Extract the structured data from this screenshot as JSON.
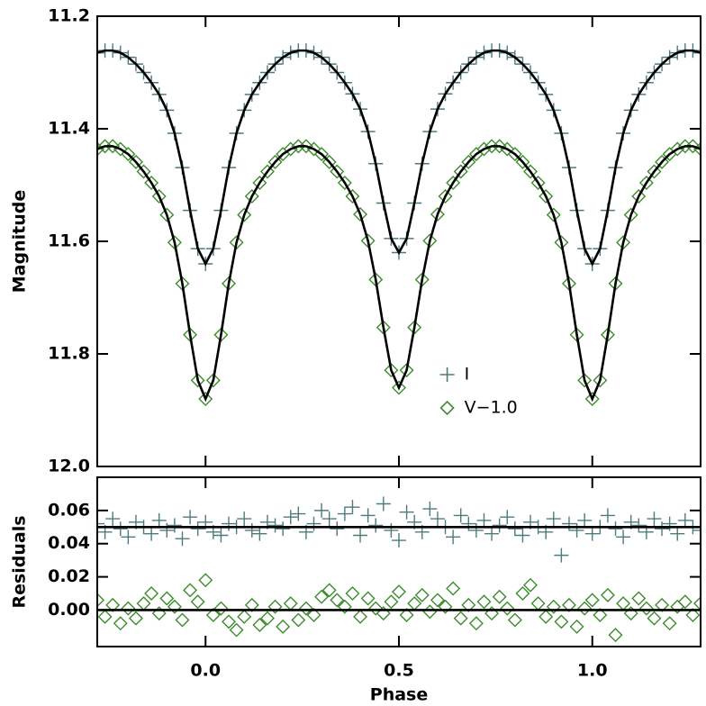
{
  "chart_data": [
    {
      "type": "scatter",
      "ylabel": "Magnitude",
      "xlim": [
        -0.28,
        1.28
      ],
      "ylim": [
        11.2,
        12.0
      ],
      "y_inverted": true,
      "xticks": [
        0,
        0.5,
        1
      ],
      "yticks": [
        11.2,
        11.4,
        11.6,
        11.8,
        {
          "value": 12.0,
          "label": "12.0"
        }
      ],
      "legend": "lower center",
      "x": [
        -0.28,
        -0.26,
        -0.24,
        -0.22,
        -0.2,
        -0.18,
        -0.16,
        -0.14,
        -0.12,
        -0.1,
        -0.08,
        -0.06,
        -0.04,
        -0.02,
        0,
        0.02,
        0.04,
        0.06,
        0.08,
        0.1,
        0.12,
        0.14,
        0.16,
        0.18,
        0.2,
        0.22,
        0.24,
        0.26,
        0.28,
        0.3,
        0.32,
        0.34,
        0.36,
        0.38,
        0.4,
        0.42,
        0.44,
        0.46,
        0.48,
        0.5,
        0.52,
        0.54,
        0.56,
        0.58,
        0.6,
        0.62,
        0.64,
        0.66,
        0.68,
        0.7,
        0.72,
        0.74,
        0.76,
        0.78,
        0.8,
        0.82,
        0.84,
        0.86,
        0.88,
        0.9,
        0.92,
        0.94,
        0.96,
        0.98,
        1,
        1.02,
        1.04,
        1.06,
        1.08,
        1.1,
        1.12,
        1.14,
        1.16,
        1.18,
        1.2,
        1.22,
        1.24,
        1.26,
        1.28
      ],
      "series": [
        {
          "name": "I",
          "color": "#4d7b7b",
          "marker": "plus",
          "values": [
            11.265,
            11.261,
            11.261,
            11.265,
            11.273,
            11.285,
            11.3,
            11.318,
            11.339,
            11.367,
            11.408,
            11.469,
            11.545,
            11.613,
            11.64,
            11.613,
            11.545,
            11.469,
            11.408,
            11.367,
            11.339,
            11.318,
            11.3,
            11.285,
            11.273,
            11.265,
            11.261,
            11.261,
            11.265,
            11.273,
            11.285,
            11.3,
            11.318,
            11.338,
            11.365,
            11.405,
            11.462,
            11.532,
            11.595,
            11.62,
            11.595,
            11.532,
            11.462,
            11.405,
            11.365,
            11.338,
            11.318,
            11.3,
            11.285,
            11.273,
            11.265,
            11.261,
            11.261,
            11.265,
            11.273,
            11.285,
            11.3,
            11.318,
            11.339,
            11.367,
            11.408,
            11.469,
            11.545,
            11.613,
            11.64,
            11.613,
            11.545,
            11.469,
            11.408,
            11.367,
            11.339,
            11.318,
            11.3,
            11.285,
            11.273,
            11.265,
            11.261,
            11.261,
            11.265
          ]
        },
        {
          "name": "V−1.0",
          "color": "#3d8c2e",
          "marker": "diamond",
          "values": [
            11.436,
            11.431,
            11.431,
            11.436,
            11.445,
            11.459,
            11.476,
            11.496,
            11.52,
            11.553,
            11.602,
            11.675,
            11.766,
            11.847,
            11.88,
            11.847,
            11.766,
            11.675,
            11.602,
            11.553,
            11.52,
            11.496,
            11.476,
            11.459,
            11.445,
            11.436,
            11.431,
            11.431,
            11.436,
            11.445,
            11.459,
            11.476,
            11.496,
            11.52,
            11.552,
            11.599,
            11.668,
            11.753,
            11.829,
            11.86,
            11.829,
            11.753,
            11.668,
            11.599,
            11.552,
            11.52,
            11.496,
            11.476,
            11.459,
            11.445,
            11.436,
            11.431,
            11.431,
            11.436,
            11.445,
            11.459,
            11.476,
            11.496,
            11.52,
            11.553,
            11.602,
            11.675,
            11.766,
            11.847,
            11.88,
            11.847,
            11.766,
            11.675,
            11.602,
            11.553,
            11.52,
            11.496,
            11.476,
            11.459,
            11.445,
            11.436,
            11.431,
            11.431,
            11.436
          ]
        },
        {
          "color": "#000000",
          "mode": "line",
          "values": [
            11.265,
            11.261,
            11.261,
            11.265,
            11.273,
            11.285,
            11.3,
            11.318,
            11.339,
            11.367,
            11.408,
            11.469,
            11.545,
            11.613,
            11.64,
            11.613,
            11.545,
            11.469,
            11.408,
            11.367,
            11.339,
            11.318,
            11.3,
            11.285,
            11.273,
            11.265,
            11.261,
            11.261,
            11.265,
            11.273,
            11.285,
            11.3,
            11.318,
            11.338,
            11.365,
            11.405,
            11.462,
            11.532,
            11.595,
            11.62,
            11.595,
            11.532,
            11.462,
            11.405,
            11.365,
            11.338,
            11.318,
            11.3,
            11.285,
            11.273,
            11.265,
            11.261,
            11.261,
            11.265,
            11.273,
            11.285,
            11.3,
            11.318,
            11.339,
            11.367,
            11.408,
            11.469,
            11.545,
            11.613,
            11.64,
            11.613,
            11.545,
            11.469,
            11.408,
            11.367,
            11.339,
            11.318,
            11.3,
            11.285,
            11.273,
            11.265,
            11.261,
            11.261,
            11.265
          ]
        },
        {
          "color": "#000000",
          "mode": "line",
          "values": [
            11.436,
            11.431,
            11.431,
            11.436,
            11.445,
            11.459,
            11.476,
            11.496,
            11.52,
            11.553,
            11.602,
            11.675,
            11.766,
            11.847,
            11.88,
            11.847,
            11.766,
            11.675,
            11.602,
            11.553,
            11.52,
            11.496,
            11.476,
            11.459,
            11.445,
            11.436,
            11.431,
            11.431,
            11.436,
            11.445,
            11.459,
            11.476,
            11.496,
            11.52,
            11.552,
            11.599,
            11.668,
            11.753,
            11.829,
            11.86,
            11.829,
            11.753,
            11.668,
            11.599,
            11.552,
            11.52,
            11.496,
            11.476,
            11.459,
            11.445,
            11.436,
            11.431,
            11.431,
            11.436,
            11.445,
            11.459,
            11.476,
            11.496,
            11.52,
            11.553,
            11.602,
            11.675,
            11.766,
            11.847,
            11.88,
            11.847,
            11.766,
            11.675,
            11.602,
            11.553,
            11.52,
            11.496,
            11.476,
            11.459,
            11.445,
            11.436,
            11.431,
            11.431,
            11.436
          ]
        }
      ]
    },
    {
      "type": "scatter",
      "ylabel": "Residuals",
      "xlabel": "Phase",
      "xlim": [
        -0.28,
        1.28
      ],
      "ylim": [
        -0.022,
        0.08
      ],
      "xticks": [
        {
          "value": 0,
          "label": "0.0"
        },
        0.5,
        {
          "value": 1,
          "label": "1.0"
        }
      ],
      "yticks": [
        {
          "value": 0,
          "label": "0.00"
        },
        {
          "value": 0.02,
          "label": "0.02"
        },
        {
          "value": 0.04,
          "label": "0.04"
        },
        {
          "value": 0.06,
          "label": "0.06"
        }
      ],
      "x": [
        -0.28,
        -0.26,
        -0.24,
        -0.22,
        -0.2,
        -0.18,
        -0.16,
        -0.14,
        -0.12,
        -0.1,
        -0.08,
        -0.06,
        -0.04,
        -0.02,
        0,
        0.02,
        0.04,
        0.06,
        0.08,
        0.1,
        0.12,
        0.14,
        0.16,
        0.18,
        0.2,
        0.22,
        0.24,
        0.26,
        0.28,
        0.3,
        0.32,
        0.34,
        0.36,
        0.38,
        0.4,
        0.42,
        0.44,
        0.46,
        0.48,
        0.5,
        0.52,
        0.54,
        0.56,
        0.58,
        0.6,
        0.62,
        0.64,
        0.66,
        0.68,
        0.7,
        0.72,
        0.74,
        0.76,
        0.78,
        0.8,
        0.82,
        0.84,
        0.86,
        0.88,
        0.9,
        0.92,
        0.94,
        0.96,
        0.98,
        1,
        1.02,
        1.04,
        1.06,
        1.08,
        1.1,
        1.12,
        1.14,
        1.16,
        1.18,
        1.2,
        1.22,
        1.24,
        1.26,
        1.28
      ],
      "series": [
        {
          "color": "#4d7b7b",
          "marker": "plus",
          "values": [
            0.052,
            0.047,
            0.055,
            0.049,
            0.044,
            0.053,
            0.05,
            0.046,
            0.054,
            0.048,
            0.051,
            0.043,
            0.056,
            0.049,
            0.053,
            0.047,
            0.045,
            0.052,
            0.05,
            0.055,
            0.048,
            0.046,
            0.053,
            0.051,
            0.049,
            0.056,
            0.058,
            0.047,
            0.052,
            0.06,
            0.055,
            0.049,
            0.058,
            0.062,
            0.045,
            0.057,
            0.051,
            0.064,
            0.048,
            0.042,
            0.059,
            0.053,
            0.047,
            0.061,
            0.055,
            0.05,
            0.044,
            0.057,
            0.052,
            0.048,
            0.054,
            0.046,
            0.051,
            0.056,
            0.049,
            0.045,
            0.053,
            0.05,
            0.047,
            0.055,
            0.033,
            0.052,
            0.048,
            0.054,
            0.046,
            0.05,
            0.057,
            0.049,
            0.044,
            0.053,
            0.051,
            0.047,
            0.055,
            0.049,
            0.052,
            0.046,
            0.054,
            0.05,
            0.048
          ]
        },
        {
          "color": "#3d8c2e",
          "marker": "diamond",
          "values": [
            0.006,
            -0.004,
            0.003,
            -0.008,
            0.001,
            -0.005,
            0.004,
            0.01,
            -0.002,
            0.007,
            0.002,
            -0.006,
            0.012,
            0.005,
            0.018,
            -0.003,
            0.001,
            -0.007,
            -0.012,
            -0.004,
            0.003,
            -0.009,
            -0.005,
            0.002,
            -0.01,
            0.004,
            -0.006,
            0.001,
            -0.003,
            0.008,
            0.012,
            0.006,
            0.002,
            0.01,
            -0.004,
            0.007,
            0.001,
            -0.002,
            0.005,
            0.011,
            -0.003,
            0.004,
            0.009,
            -0.001,
            0.006,
            0.002,
            0.013,
            -0.005,
            0.003,
            -0.008,
            0.005,
            -0.002,
            0.008,
            0.001,
            -0.006,
            0.01,
            0.015,
            0.004,
            -0.004,
            0.002,
            -0.007,
            0.003,
            -0.01,
            0.001,
            0.006,
            -0.003,
            0.009,
            -0.015,
            0.004,
            -0.002,
            0.007,
            0.001,
            -0.005,
            0.003,
            -0.008,
            0.002,
            0.005,
            -0.003,
            0.004
          ]
        },
        {
          "color": "#000000",
          "mode": "line",
          "x": [
            -0.28,
            1.28
          ],
          "values": [
            0.05,
            0.05
          ]
        },
        {
          "color": "#000000",
          "mode": "line",
          "x": [
            -0.28,
            1.28
          ],
          "values": [
            0,
            0
          ]
        }
      ]
    }
  ]
}
